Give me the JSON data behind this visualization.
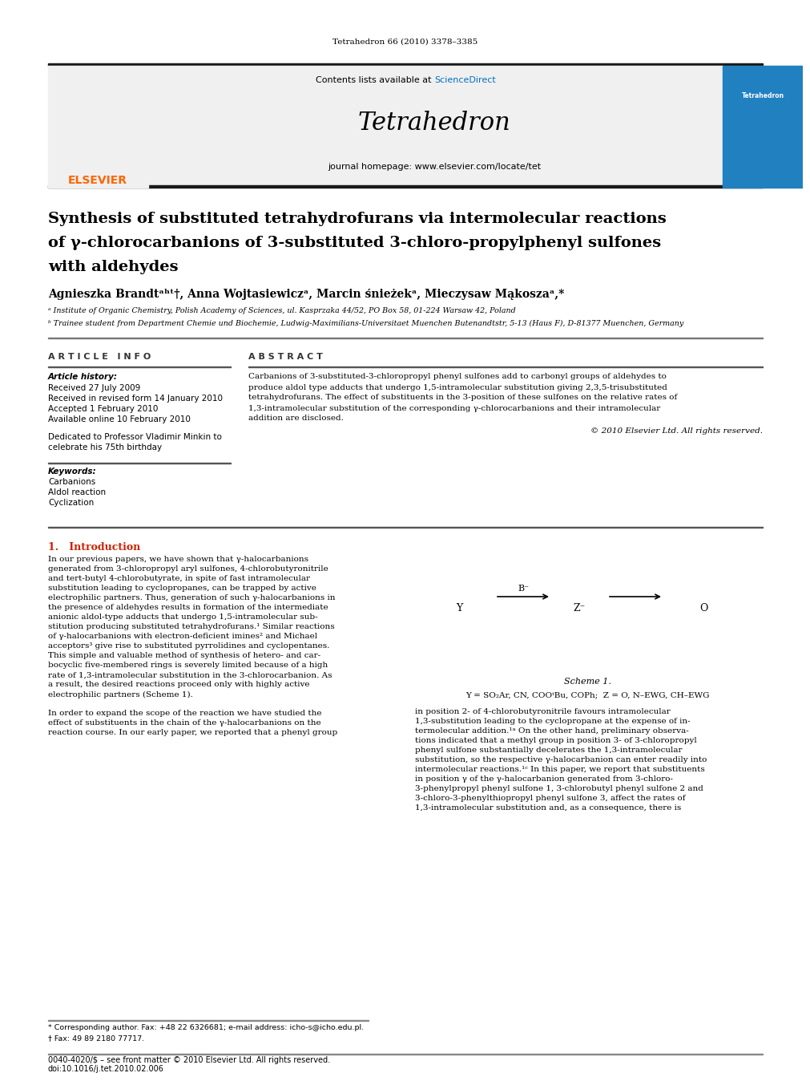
{
  "journal_ref": "Tetrahedron 66 (2010) 3378–3385",
  "contents_text": "Contents lists available at ScienceDirect",
  "sciencedirect_color": "#0070C0",
  "journal_name": "Tetrahedron",
  "journal_homepage": "journal homepage: www.elsevier.com/locate/tet",
  "elsevier_color": "#FF6600",
  "title_line1": "Synthesis of substituted tetrahydrofurans via intermolecular reactions",
  "title_line2": "of γ-chlorocarbanions of 3-substituted 3-chloro-propylphenyl sulfones",
  "title_line3": "with aldehydes",
  "article_info_title": "A R T I C L E   I N F O",
  "abstract_title": "A B S T R A C T",
  "article_history": "Article history:",
  "received1": "Received 27 July 2009",
  "received2": "Received in revised form 14 January 2010",
  "accepted": "Accepted 1 February 2010",
  "available": "Available online 10 February 2010",
  "keywords_title": "Keywords:",
  "copyright": "© 2010 Elsevier Ltd. All rights reserved.",
  "intro_title": "1.   Introduction",
  "scheme_label": "Scheme 1.",
  "scheme_eq": "Y = SO₂Ar, CN, COOᵗBu, COPh;  Z = O, N–EWG, CH–EWG",
  "footnote_corresp": "* Corresponding author. Fax: +48 22 6326681; e-mail address: icho-s@icho.edu.pl.",
  "footnote_dagger": "† Fax: 49 89 2180 77717.",
  "footer_issn": "0040-4020/$ – see front matter © 2010 Elsevier Ltd. All rights reserved.",
  "footer_doi": "doi:10.1016/j.tet.2010.02.006",
  "bg_color": "#FFFFFF",
  "header_bg": "#F0F0F0",
  "dark_bar_color": "#1a1a1a",
  "body_text_color": "#000000",
  "title_color": "#000000",
  "intro_lines_left": [
    "In our previous papers, we have shown that γ-halocarbanions",
    "generated from 3-chloropropyl aryl sulfones, 4-chlorobutyronitrile",
    "and tert-butyl 4-chlorobutyrate, in spite of fast intramolecular",
    "substitution leading to cyclopropanes, can be trapped by active",
    "electrophilic partners. Thus, generation of such γ-halocarbanions in",
    "the presence of aldehydes results in formation of the intermediate",
    "anionic aldol-type adducts that undergo 1,5-intramolecular sub-",
    "stitution producing substituted tetrahydrofurans.¹ Similar reactions",
    "of γ-halocarbanions with electron-deficient imines² and Michael",
    "acceptors³ give rise to substituted pyrrolidines and cyclopentanes.",
    "This simple and valuable method of synthesis of hetero- and car-",
    "bocyclic five-membered rings is severely limited because of a high",
    "rate of 1,3-intramolecular substitution in the 3-chlorocarbanion. As",
    "a result, the desired reactions proceed only with highly active",
    "electrophilic partners (Scheme 1).",
    "",
    "In order to expand the scope of the reaction we have studied the",
    "effect of substituents in the chain of the γ-halocarbanions on the",
    "reaction course. In our early paper, we reported that a phenyl group"
  ],
  "right_lines": [
    "in position 2- of 4-chlorobutyronitrile favours intramolecular",
    "1,3-substitution leading to the cyclopropane at the expense of in-",
    "termolecular addition.¹ᵃ On the other hand, preliminary observa-",
    "tions indicated that a methyl group in position 3- of 3-chloropropyl",
    "phenyl sulfone substantially decelerates the 1,3-intramolecular",
    "substitution, so the respective γ-halocarbanion can enter readily into",
    "intermolecular reactions.¹ᶜ In this paper, we report that substituents",
    "in position γ of the γ-halocarbanion generated from 3-chloro-",
    "3-phenylpropyl phenyl sulfone 1, 3-chlorobutyl phenyl sulfone 2 and",
    "3-chloro-3-phenylthiopropyl phenyl sulfone 3, affect the rates of",
    "1,3-intramolecular substitution and, as a consequence, there is"
  ],
  "abstract_lines": [
    "Carbanions of 3-substituted-3-chloropropyl phenyl sulfones add to carbonyl groups of aldehydes to",
    "produce aldol type adducts that undergo 1,5-intramolecular substitution giving 2,3,5-trisubstituted",
    "tetrahydrofurans. The effect of substituents in the 3-position of these sulfones on the relative rates of",
    "1,3-intramolecular substitution of the corresponding γ-chlorocarbanions and their intramolecular",
    "addition are disclosed."
  ]
}
